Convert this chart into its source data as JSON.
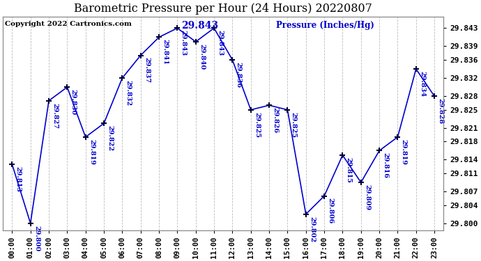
{
  "title": "Barometric Pressure per Hour (24 Hours) 20220807",
  "ylabel": "Pressure (Inches/Hg)",
  "copyright": "Copyright 2022 Cartronics.com",
  "hours": [
    "00:00",
    "01:00",
    "02:00",
    "03:00",
    "04:00",
    "05:00",
    "06:00",
    "07:00",
    "08:00",
    "09:00",
    "10:00",
    "11:00",
    "12:00",
    "13:00",
    "14:00",
    "15:00",
    "16:00",
    "17:00",
    "18:00",
    "19:00",
    "20:00",
    "21:00",
    "22:00",
    "23:00"
  ],
  "values": [
    29.813,
    29.8,
    29.827,
    29.83,
    29.819,
    29.822,
    29.832,
    29.837,
    29.841,
    29.843,
    29.84,
    29.843,
    29.836,
    29.825,
    29.826,
    29.825,
    29.802,
    29.806,
    29.815,
    29.809,
    29.816,
    29.819,
    29.834,
    29.828
  ],
  "max_label": "29.843",
  "ylim_min": 29.7985,
  "ylim_max": 29.8455,
  "line_color": "#0000CC",
  "marker_color": "#000033",
  "title_color": "#000000",
  "ylabel_color": "#0000CC",
  "copyright_color": "#000000",
  "max_label_color": "#0000CC",
  "bg_color": "#ffffff",
  "grid_color": "#aaaaaa",
  "title_fontsize": 11.5,
  "annotation_fontsize": 7,
  "ytick_values": [
    29.8,
    29.804,
    29.807,
    29.811,
    29.814,
    29.818,
    29.821,
    29.825,
    29.828,
    29.832,
    29.836,
    29.839,
    29.843
  ]
}
